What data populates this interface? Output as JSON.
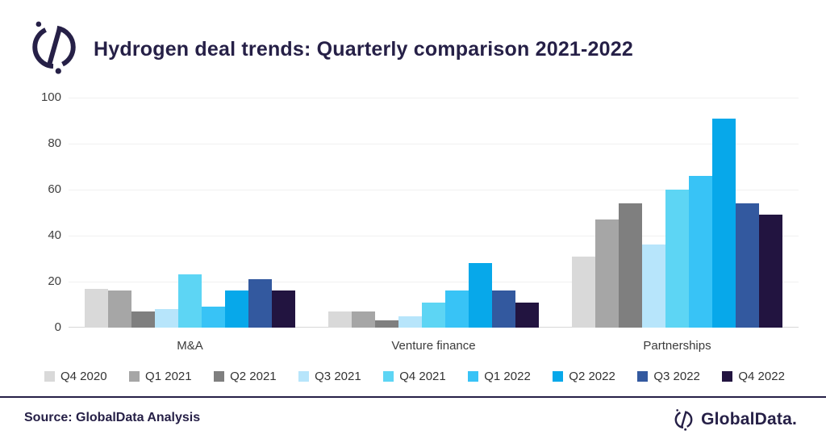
{
  "header": {
    "title": "Hydrogen deal trends: Quarterly comparison 2021-2022"
  },
  "chart_data": {
    "type": "bar",
    "title": "Hydrogen deal trends: Quarterly comparison 2021-2022",
    "categories": [
      "M&A",
      "Venture finance",
      "Partnerships"
    ],
    "series": [
      {
        "name": "Q4 2020",
        "color": "#d9d9d9",
        "values": [
          17,
          7,
          31
        ]
      },
      {
        "name": "Q1 2021",
        "color": "#a6a6a6",
        "values": [
          16,
          7,
          47
        ]
      },
      {
        "name": "Q2 2021",
        "color": "#7f7f7f",
        "values": [
          7,
          3,
          54
        ]
      },
      {
        "name": "Q3 2021",
        "color": "#b7e5fb",
        "values": [
          8,
          5,
          36
        ]
      },
      {
        "name": "Q4 2021",
        "color": "#5dd5f4",
        "values": [
          23,
          11,
          60
        ]
      },
      {
        "name": "Q1 2022",
        "color": "#38c3f6",
        "values": [
          9,
          16,
          66
        ]
      },
      {
        "name": "Q2 2022",
        "color": "#07a8ea",
        "values": [
          16,
          28,
          91
        ]
      },
      {
        "name": "Q3 2022",
        "color": "#33599f",
        "values": [
          21,
          16,
          54
        ]
      },
      {
        "name": "Q4 2022",
        "color": "#221440",
        "values": [
          16,
          11,
          49
        ]
      }
    ],
    "y_axis": {
      "min": 0,
      "max": 100,
      "tick_step": 20,
      "ticks": [
        0,
        20,
        40,
        60,
        80,
        100
      ]
    },
    "xlabel": "",
    "ylabel": "",
    "grid": true,
    "legend_position": "bottom"
  },
  "footer": {
    "source": "Source: GlobalData Analysis",
    "brand": "GlobalData."
  },
  "colors": {
    "brand_navy": "#262047",
    "axis_text": "#3f3f3f",
    "gridline": "#f1f1f1"
  }
}
